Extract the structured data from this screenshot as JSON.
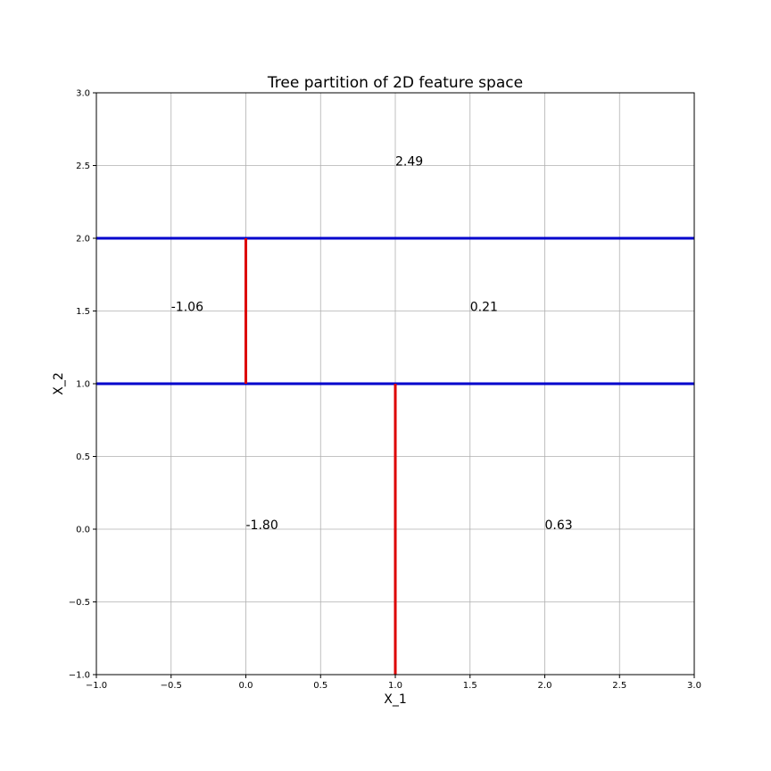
{
  "chart_data": {
    "type": "line",
    "title": "Tree partition of 2D feature space",
    "x_label": "X_1",
    "y_label": "X_2",
    "xlim": [
      -1.0,
      3.0
    ],
    "ylim": [
      -1.0,
      3.0
    ],
    "xticks": [
      {
        "value": -1.0,
        "label": "−1.0"
      },
      {
        "value": -0.5,
        "label": "−0.5"
      },
      {
        "value": 0.0,
        "label": "0.0"
      },
      {
        "value": 0.5,
        "label": "0.5"
      },
      {
        "value": 1.0,
        "label": "1.0"
      },
      {
        "value": 1.5,
        "label": "1.5"
      },
      {
        "value": 2.0,
        "label": "2.0"
      },
      {
        "value": 2.5,
        "label": "2.5"
      },
      {
        "value": 3.0,
        "label": "3.0"
      }
    ],
    "yticks": [
      {
        "value": -1.0,
        "label": "−1.0"
      },
      {
        "value": -0.5,
        "label": "−0.5"
      },
      {
        "value": 0.0,
        "label": "0.0"
      },
      {
        "value": 0.5,
        "label": "0.5"
      },
      {
        "value": 1.0,
        "label": "1.0"
      },
      {
        "value": 1.5,
        "label": "1.5"
      },
      {
        "value": 2.0,
        "label": "2.0"
      },
      {
        "value": 2.5,
        "label": "2.5"
      },
      {
        "value": 3.0,
        "label": "3.0"
      }
    ],
    "grid": true,
    "series": [
      {
        "color": "#0000cc",
        "x": [
          -1.0,
          3.0
        ],
        "values": [
          2.0,
          2.0
        ]
      },
      {
        "color": "#0000cc",
        "x": [
          -1.0,
          3.0
        ],
        "values": [
          1.0,
          1.0
        ]
      },
      {
        "color": "#dd0000",
        "x": [
          0.0,
          0.0
        ],
        "values": [
          1.0,
          2.0
        ]
      },
      {
        "color": "#dd0000",
        "x": [
          1.0,
          1.0
        ],
        "values": [
          -1.0,
          1.0
        ]
      }
    ],
    "annotations": [
      {
        "text": "2.49",
        "x": 1.0,
        "y": 2.5
      },
      {
        "text": "-1.06",
        "x": -0.5,
        "y": 1.5
      },
      {
        "text": "0.21",
        "x": 1.5,
        "y": 1.5
      },
      {
        "text": "-1.80",
        "x": 0.0,
        "y": 0.0
      },
      {
        "text": "0.63",
        "x": 2.0,
        "y": 0.0
      }
    ]
  }
}
